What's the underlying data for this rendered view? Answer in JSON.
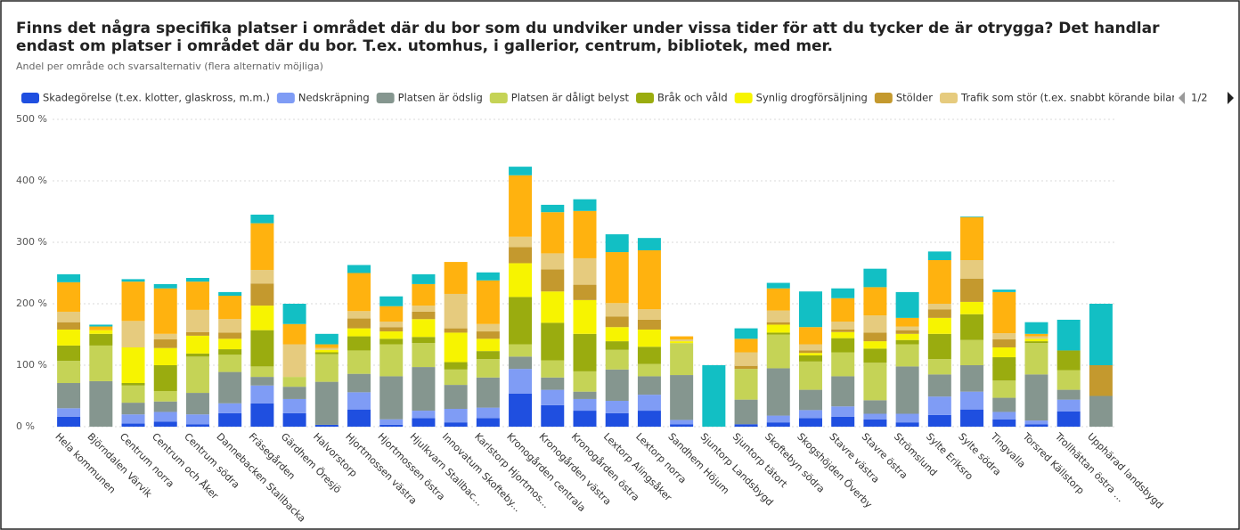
{
  "chart_data": {
    "type": "stacked_bar",
    "title_lines": [
      "Finns det några specifika platser i området där du bor som du undviker under vissa tider för att du tycker de är otrygga? Det handlar",
      "endast om platser i området där du bor. T.ex. utomhus, i gallerior, centrum, bibliotek, med mer."
    ],
    "subtitle": "Andel per område och svarsalternativ (flera alternativ möjliga)",
    "legend_page": "1/2",
    "categories": [
      "Hela kommunen",
      "Björndalen Värvik",
      "Centrum norra",
      "Centrum och Åker",
      "Centrum södra",
      "Dannebacken Stallbacka",
      "Fräsegården",
      "Gärdhem Öresjö",
      "Halvorstorp",
      "Hjortmossen västra",
      "Hjortmossen östra",
      "Hjulkvarn Stallbac...",
      "Innovatum Skofteby...",
      "Karlstorp Hjortmos...",
      "Kronogården centrala",
      "Kronogården västra",
      "Kronogården östra",
      "Lextorp Alingsåker",
      "Lextorp norra",
      "Sandhem Höjum",
      "Sjuntorp Landsbygd",
      "Sjuntorp tätort",
      "Skoftebyn södra",
      "Skogshöjden Överby",
      "Stavre västra",
      "Stavre östra",
      "Strömslund",
      "Sylte Eriksro",
      "Sylte södra",
      "Tingvalla",
      "Torsred Källstorp",
      "Trollhättan östra ...",
      "Upphärad landsbygd"
    ],
    "series": [
      {
        "name": "Skadegörelse (t.ex. klotter, glaskross, m.m.)",
        "color": "#1f4fe0",
        "values": [
          16,
          0,
          5,
          8,
          4,
          22,
          38,
          22,
          3,
          28,
          3,
          14,
          7,
          14,
          54,
          35,
          26,
          22,
          26,
          4,
          0,
          4,
          7,
          14,
          16,
          12,
          7,
          19,
          28,
          12,
          4,
          25,
          0
        ]
      },
      {
        "name": "Nedskräpning",
        "color": "#7f9cf5",
        "values": [
          14,
          0,
          15,
          16,
          16,
          16,
          29,
          23,
          0,
          28,
          9,
          12,
          22,
          17,
          40,
          25,
          19,
          20,
          26,
          7,
          0,
          0,
          11,
          13,
          17,
          9,
          14,
          30,
          29,
          12,
          6,
          19,
          0
        ]
      },
      {
        "name": "Platsen är ödslig",
        "color": "#85968f",
        "values": [
          41,
          74,
          19,
          17,
          35,
          51,
          14,
          20,
          70,
          30,
          70,
          71,
          39,
          49,
          20,
          20,
          12,
          51,
          30,
          73,
          0,
          40,
          77,
          33,
          49,
          22,
          77,
          36,
          43,
          23,
          75,
          16,
          50
        ]
      },
      {
        "name": "Platsen är dåligt belyst",
        "color": "#c5d356",
        "values": [
          36,
          58,
          28,
          17,
          59,
          28,
          17,
          16,
          45,
          38,
          52,
          39,
          25,
          30,
          20,
          28,
          33,
          32,
          20,
          52,
          0,
          50,
          55,
          46,
          39,
          61,
          36,
          25,
          41,
          28,
          51,
          32,
          0
        ]
      },
      {
        "name": "Bråk och våld",
        "color": "#9aac0f",
        "values": [
          25,
          19,
          4,
          42,
          5,
          9,
          59,
          0,
          3,
          23,
          9,
          10,
          12,
          13,
          77,
          61,
          61,
          14,
          28,
          0,
          0,
          0,
          3,
          10,
          23,
          23,
          7,
          41,
          42,
          38,
          3,
          32,
          0
        ]
      },
      {
        "name": "Synlig drogförsäljning",
        "color": "#f7f400",
        "values": [
          26,
          6,
          58,
          28,
          29,
          17,
          40,
          0,
          4,
          13,
          12,
          29,
          48,
          20,
          55,
          51,
          55,
          23,
          28,
          3,
          0,
          0,
          13,
          4,
          10,
          12,
          10,
          26,
          20,
          16,
          4,
          0,
          0
        ]
      },
      {
        "name": "Stölder",
        "color": "#c4992e",
        "values": [
          12,
          0,
          0,
          14,
          6,
          10,
          36,
          0,
          0,
          16,
          7,
          12,
          7,
          12,
          26,
          36,
          25,
          17,
          16,
          0,
          0,
          5,
          4,
          4,
          4,
          14,
          6,
          14,
          38,
          13,
          0,
          0,
          50
        ]
      },
      {
        "name": "Trafik som stör (t.ex. snabbt körande bilar eller mope",
        "color": "#e6cb7e",
        "values": [
          17,
          0,
          43,
          9,
          36,
          22,
          22,
          53,
          3,
          12,
          9,
          10,
          56,
          12,
          17,
          26,
          43,
          22,
          17,
          3,
          0,
          22,
          19,
          10,
          13,
          28,
          6,
          9,
          30,
          10,
          4,
          0,
          0
        ]
      },
      {
        "color": "#ffb20f",
        "values": [
          48,
          6,
          64,
          74,
          46,
          38,
          76,
          33,
          6,
          62,
          25,
          35,
          52,
          71,
          100,
          67,
          77,
          83,
          96,
          5,
          0,
          22,
          36,
          28,
          38,
          46,
          14,
          71,
          70,
          67,
          4,
          0,
          0
        ]
      },
      {
        "color": "#12bfc4",
        "values": [
          13,
          3,
          4,
          7,
          6,
          6,
          14,
          33,
          17,
          13,
          16,
          16,
          0,
          13,
          14,
          12,
          19,
          29,
          20,
          0,
          100,
          17,
          9,
          58,
          16,
          30,
          42,
          14,
          1,
          4,
          19,
          50,
          100
        ]
      }
    ],
    "ylim": [
      0,
      500
    ],
    "yticks": [
      {
        "value": 0,
        "label": "0 %"
      },
      {
        "value": 100,
        "label": "100 %"
      },
      {
        "value": 200,
        "label": "200 %"
      },
      {
        "value": 300,
        "label": "300 %"
      },
      {
        "value": 400,
        "label": "400 %"
      },
      {
        "value": 500,
        "label": "500 %"
      }
    ],
    "grid": true
  }
}
